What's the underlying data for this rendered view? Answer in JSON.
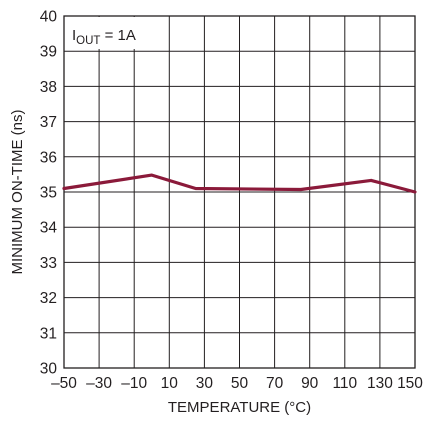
{
  "chart_data": {
    "type": "line",
    "title": "",
    "xlabel": "TEMPERATURE (°C)",
    "ylabel": "MINIMUM ON-TIME (ns)",
    "xlim": [
      -50,
      150
    ],
    "ylim": [
      30,
      40
    ],
    "x_ticks": [
      -50,
      -30,
      -10,
      10,
      30,
      50,
      70,
      90,
      110,
      130,
      150
    ],
    "y_ticks": [
      30,
      31,
      32,
      33,
      34,
      35,
      36,
      37,
      38,
      39,
      40
    ],
    "grid": true,
    "annotation": {
      "main": "I",
      "subscript": "OUT",
      "suffix": " = 1A"
    },
    "line_color": "#8b1a3a",
    "series": [
      {
        "x": [
          -50,
          0,
          25,
          85,
          125,
          150
        ],
        "values": [
          35.1,
          35.48,
          35.1,
          35.07,
          35.33,
          35.0
        ]
      }
    ]
  }
}
